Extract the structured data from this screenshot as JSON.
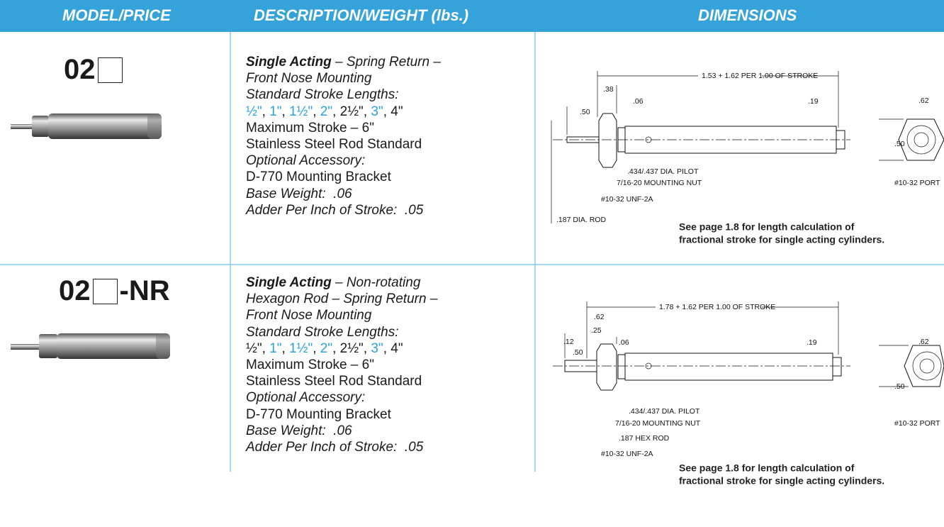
{
  "header": {
    "columns": [
      "MODEL/PRICE",
      "DESCRIPTION/WEIGHT (lbs.)",
      "DIMENSIONS"
    ]
  },
  "products": [
    {
      "model": "02",
      "description": [
        {
          "spans": [
            {
              "text": "Single Acting",
              "style": "bold-italic"
            },
            {
              "text": " – Spring Return –",
              "style": "italic"
            }
          ]
        },
        {
          "spans": [
            {
              "text": "Front Nose Mounting",
              "style": "italic"
            }
          ]
        },
        {
          "spans": [
            {
              "text": "Standard Stroke Lengths:",
              "style": "italic"
            }
          ]
        },
        {
          "spans": [
            {
              "text": "½\"",
              "color": "#29a3dd"
            },
            {
              "text": ", "
            },
            {
              "text": "1\"",
              "color": "#29a3dd"
            },
            {
              "text": ", "
            },
            {
              "text": "1½\"",
              "color": "#29a3dd"
            },
            {
              "text": ", "
            },
            {
              "text": "2\"",
              "color": "#29a3dd"
            },
            {
              "text": ", "
            },
            {
              "text": "2½\""
            },
            {
              "text": ", "
            },
            {
              "text": "3\"",
              "color": "#29a3dd"
            },
            {
              "text": ", "
            },
            {
              "text": "4\""
            }
          ]
        },
        {
          "spans": [
            {
              "text": "Maximum Stroke – 6\""
            }
          ]
        },
        {
          "spans": [
            {
              "text": "Stainless Steel Rod Standard"
            }
          ]
        },
        {
          "spans": [
            {
              "text": "Optional Accessory:",
              "style": "italic"
            }
          ]
        },
        {
          "spans": [
            {
              "text": "D-770 Mounting Bracket"
            }
          ]
        },
        {
          "spans": [
            {
              "text": "Base Weight:  .06",
              "style": "italic"
            }
          ]
        },
        {
          "spans": [
            {
              "text": "Adder Per Inch of Stroke:  .05",
              "style": "italic"
            }
          ]
        }
      ],
      "dimensions": [
        "1.53 + 1.62 PER 1.00 OF STROKE",
        ".38",
        ".06",
        ".50",
        ".19",
        ".62",
        ".50",
        ".434/.437 DIA. PILOT",
        "7/16-20 MOUNTING NUT",
        "#10-32 UNF-2A",
        ".187 DIA. ROD",
        "#10-32 PORT"
      ],
      "note": [
        "See page 1.8 for length calculation of",
        "fractional stroke for single acting cylinders."
      ]
    },
    {
      "model": "02",
      "model_suffix": "-NR",
      "description": [
        {
          "spans": [
            {
              "text": "Single Acting",
              "style": "bold-italic"
            },
            {
              "text": " – Non-rotating",
              "style": "italic"
            }
          ]
        },
        {
          "spans": [
            {
              "text": "Hexagon Rod – Spring Return –",
              "style": "italic"
            }
          ]
        },
        {
          "spans": [
            {
              "text": "Front Nose Mounting",
              "style": "italic"
            }
          ]
        },
        {
          "spans": [
            {
              "text": "Standard Stroke Lengths:",
              "style": "italic"
            }
          ]
        },
        {
          "spans": [
            {
              "text": "½\""
            },
            {
              "text": ", "
            },
            {
              "text": "1\"",
              "color": "#29a3dd"
            },
            {
              "text": ", "
            },
            {
              "text": "1½\"",
              "color": "#29a3dd"
            },
            {
              "text": ", "
            },
            {
              "text": "2\"",
              "color": "#29a3dd"
            },
            {
              "text": ", "
            },
            {
              "text": "2½\""
            },
            {
              "text": ", "
            },
            {
              "text": "3\"",
              "color": "#29a3dd"
            },
            {
              "text": ", "
            },
            {
              "text": "4\""
            }
          ]
        },
        {
          "spans": [
            {
              "text": "Maximum Stroke – 6\""
            }
          ]
        },
        {
          "spans": [
            {
              "text": "Stainless Steel Rod Standard"
            }
          ]
        },
        {
          "spans": [
            {
              "text": "Optional Accessory:",
              "style": "italic"
            }
          ]
        },
        {
          "spans": [
            {
              "text": "D-770 Mounting Bracket"
            }
          ]
        },
        {
          "spans": [
            {
              "text": "Base Weight:  .06",
              "style": "italic"
            }
          ]
        },
        {
          "spans": [
            {
              "text": "Adder Per Inch of Stroke:  .05",
              "style": "italic"
            }
          ]
        }
      ],
      "dimensions": [
        "1.78 + 1.62 PER 1.00 OF STROKE",
        ".62",
        ".25",
        ".12",
        ".50",
        ".06",
        ".19",
        ".62",
        ".50",
        ".434/.437 DIA. PILOT",
        "7/16-20 MOUNTING NUT",
        ".187 HEX ROD",
        "#10-32 UNF-2A",
        "#10-32 PORT"
      ],
      "note": [
        "See page 1.8 for length calculation of",
        "fractional stroke for single acting cylinders."
      ]
    }
  ]
}
